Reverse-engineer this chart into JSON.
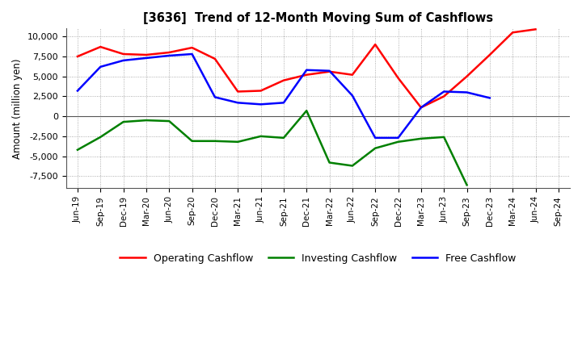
{
  "title": "[3636]  Trend of 12-Month Moving Sum of Cashflows",
  "ylabel": "Amount (million yen)",
  "x_labels": [
    "Jun-19",
    "Sep-19",
    "Dec-19",
    "Mar-20",
    "Jun-20",
    "Sep-20",
    "Dec-20",
    "Mar-21",
    "Jun-21",
    "Sep-21",
    "Dec-21",
    "Mar-22",
    "Jun-22",
    "Sep-22",
    "Dec-22",
    "Mar-23",
    "Jun-23",
    "Sep-23",
    "Dec-23",
    "Mar-24",
    "Jun-24",
    "Sep-24"
  ],
  "operating_cashflow": [
    7500,
    8700,
    7800,
    7700,
    8000,
    8600,
    7200,
    3100,
    3200,
    4500,
    5200,
    5600,
    5200,
    9000,
    4800,
    1100,
    2500,
    5000,
    7700,
    10500,
    10900,
    null
  ],
  "investing_cashflow": [
    -4200,
    -2600,
    -700,
    -500,
    -600,
    -3100,
    -3100,
    -3200,
    -2500,
    -2700,
    700,
    -5800,
    -6200,
    -4000,
    -3200,
    -2800,
    -2600,
    -8600,
    null,
    null,
    null,
    null
  ],
  "free_cashflow": [
    3200,
    6200,
    7000,
    7300,
    7600,
    7800,
    2400,
    1700,
    1500,
    1700,
    5800,
    5700,
    2600,
    -2700,
    -2700,
    1100,
    3100,
    3000,
    2300,
    null,
    null,
    null
  ],
  "operating_color": "#FF0000",
  "investing_color": "#008000",
  "free_color": "#0000FF",
  "ylim": [
    -9000,
    11000
  ],
  "yticks": [
    -7500,
    -5000,
    -2500,
    0,
    2500,
    5000,
    7500,
    10000
  ],
  "background_color": "#FFFFFF",
  "grid_color": "#999999",
  "line_width": 1.8
}
